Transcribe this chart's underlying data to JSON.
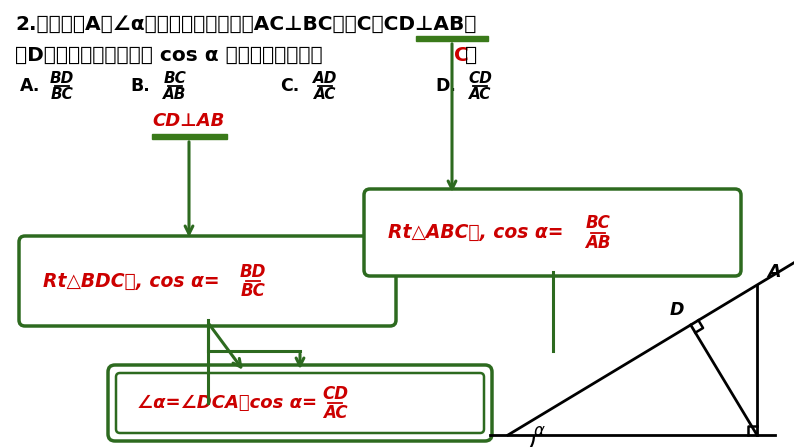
{
  "bg_color": "#ffffff",
  "dark_green": "#2d6a1f",
  "red_color": "#cc0000",
  "black": "#000000",
  "green_bar": "#3a7a1a",
  "title1_parts": [
    "2.如图，点",
    "A",
    "为∠",
    "α",
    "边上的任意一点，作",
    "AC⊥BC",
    "于点",
    "C",
    "，",
    "CD⊥AB",
    "于"
  ],
  "title2_start": "点",
  "title2_D": "D",
  "title2_mid": "，下列用线段比表示 cos ",
  "title2_alpha": "α",
  "title2_end": " 的值，错误的是（",
  "answer": " C ",
  "title2_close": "）",
  "opt_A_letter": "A.",
  "opt_A_num": "BD",
  "opt_A_den": "BC",
  "opt_B_letter": "B.",
  "opt_B_num": "BC",
  "opt_B_den": "AB",
  "opt_C_letter": "C.",
  "opt_C_num": "AD",
  "opt_C_den": "AC",
  "opt_D_letter": "D.",
  "opt_D_num": "CD",
  "opt_D_den": "AC",
  "label_CD_perp_AB": "CD⊥AB",
  "box1_prefix": "Rt",
  "box1_tri": "△",
  "box1_mid": "BDC",
  "box1_zhong": "中",
  "box1_cos": ", cos α=",
  "box1_num": "BD",
  "box1_den": "BC",
  "box2_prefix": "Rt",
  "box2_tri": "△",
  "box2_mid": "ABC",
  "box2_zhong": "中",
  "box2_cos": ", cos α=",
  "box2_num": "BC",
  "box2_den": "AB",
  "box3_text": "∠α=∠DCA，cos α=",
  "box3_num": "CD",
  "box3_den": "AC"
}
